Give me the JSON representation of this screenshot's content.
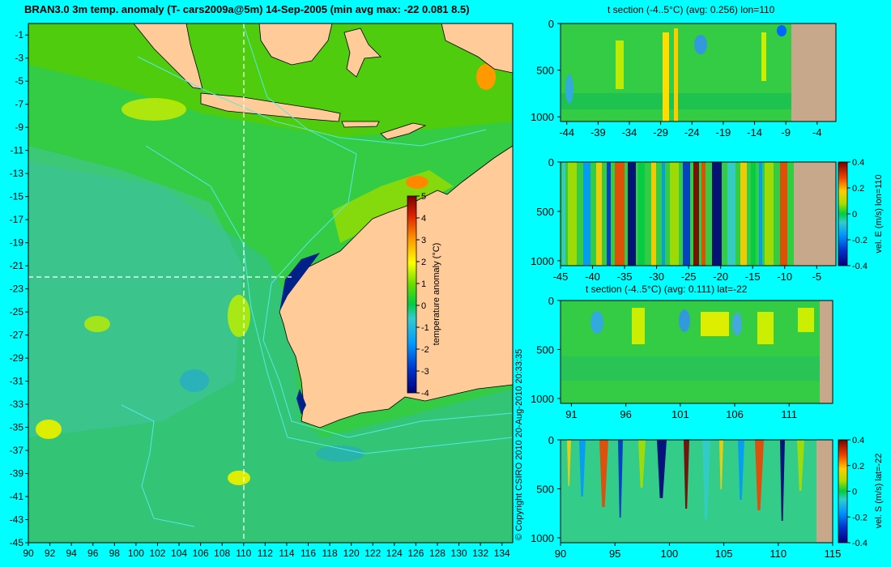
{
  "main_title": "BRAN3.0 3m temp. anomaly (T- cars2009a@5m) 14-Sep-2005 (min avg max: -22 0.081 8.5)",
  "copyright": "© Copyright CSIRO 2010   20-Aug-2010 20:33:35",
  "colors": {
    "background": "#00ffff",
    "land": "#ffcc99",
    "section_land": "#c8a88a",
    "frame": "#000000",
    "contour": "#55e8e8"
  },
  "chart_data": [
    {
      "type": "heatmap",
      "name": "map",
      "xlim": [
        90,
        135
      ],
      "ylim": [
        -45,
        0
      ],
      "x_ticks": [
        "90",
        "92",
        "94",
        "96",
        "98",
        "100",
        "102",
        "104",
        "106",
        "108",
        "110",
        "112",
        "114",
        "116",
        "118",
        "120",
        "122",
        "124",
        "126",
        "128",
        "130",
        "132",
        "134"
      ],
      "y_ticks": [
        "-1",
        "-3",
        "-5",
        "-7",
        "-9",
        "-11",
        "-13",
        "-15",
        "-17",
        "-19",
        "-21",
        "-23",
        "-25",
        "-27",
        "-29",
        "-31",
        "-33",
        "-35",
        "-37",
        "-39",
        "-41",
        "-43",
        "-45"
      ],
      "crosshair": {
        "lon": 110,
        "lat": -22
      },
      "colorbar": {
        "label": "temperature anomaly (°C)",
        "ticks": [
          "5",
          "4",
          "3",
          "2",
          "1",
          "0",
          "-1",
          "-2",
          "-3",
          "-4"
        ],
        "range": [
          -4,
          5
        ]
      }
    },
    {
      "type": "heatmap",
      "name": "t-section-lon",
      "title": "t section (-4..5°C) (avg: 0.256) lon=110",
      "xlim": [
        -45,
        -1
      ],
      "ylim": [
        0,
        1050
      ],
      "x_ticks": [
        "-44",
        "-39",
        "-34",
        "-29",
        "-24",
        "-19",
        "-14",
        "-9",
        "-4"
      ],
      "y_ticks": [
        "0",
        "500",
        "1000"
      ]
    },
    {
      "type": "heatmap",
      "name": "vel-e-section",
      "title": "",
      "xlim": [
        -45,
        -2
      ],
      "ylim": [
        0,
        1050
      ],
      "x_ticks": [
        "-45",
        "-40",
        "-35",
        "-30",
        "-25",
        "-20",
        "-15",
        "-10",
        "-5"
      ],
      "y_ticks": [
        "0",
        "500",
        "1000"
      ],
      "colorbar": {
        "label": "vel. E (m/s) lon=110",
        "ticks": [
          "0.4",
          "0.2",
          "0",
          "-0.2",
          "-0.4"
        ],
        "range": [
          -0.4,
          0.4
        ]
      }
    },
    {
      "type": "heatmap",
      "name": "t-section-lat",
      "title": "t section (-4..5°C) (avg: 0.111) lat=-22",
      "xlim": [
        90,
        115
      ],
      "ylim": [
        0,
        1050
      ],
      "x_ticks": [
        "91",
        "96",
        "101",
        "106",
        "111"
      ],
      "y_ticks": [
        "0",
        "500",
        "1000"
      ]
    },
    {
      "type": "heatmap",
      "name": "vel-s-section",
      "title": "",
      "xlim": [
        90,
        115
      ],
      "ylim": [
        0,
        1050
      ],
      "x_ticks": [
        "90",
        "95",
        "100",
        "105",
        "110",
        "115"
      ],
      "y_ticks": [
        "0",
        "500",
        "1000"
      ],
      "colorbar": {
        "label": "vel. S (m/s) lat=-22",
        "ticks": [
          "0.4",
          "0.2",
          "0",
          "-0.2",
          "-0.4"
        ],
        "range": [
          -0.4,
          0.4
        ]
      }
    }
  ]
}
